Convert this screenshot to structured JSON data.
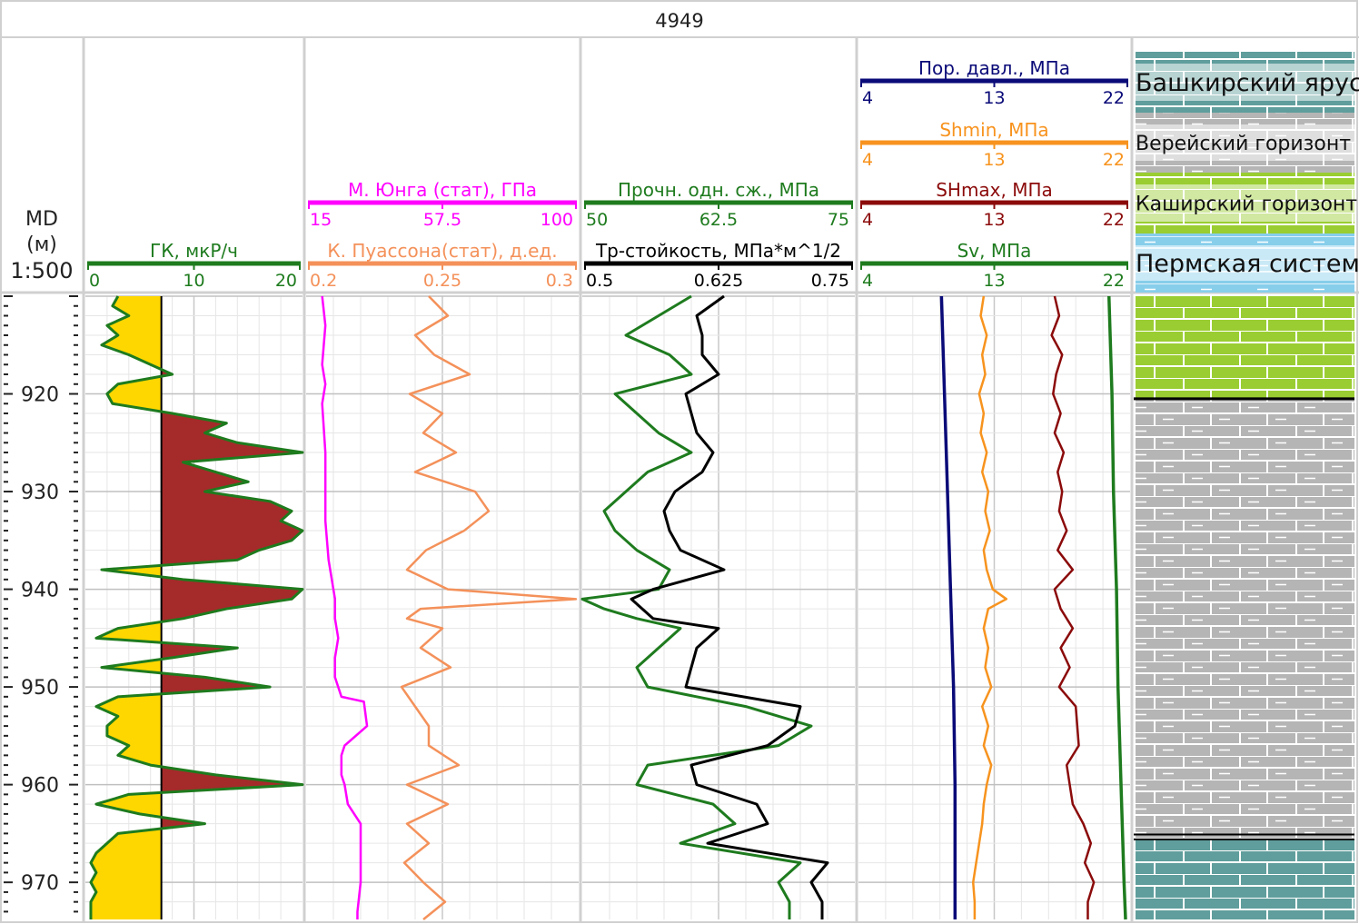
{
  "well": {
    "name": "4949"
  },
  "depth_track": {
    "label_line1": "MD",
    "label_line2": "(м)",
    "scale": "1:500",
    "range": [
      910.0,
      973.8
    ],
    "tick_labels": [
      "920",
      "930",
      "940",
      "950",
      "960",
      "970"
    ]
  },
  "headers": [
    {
      "id": "gk",
      "name": "ГК, мкР/ч",
      "color": "#1e7b1e",
      "scale": [
        "0",
        "10",
        "20"
      ]
    },
    {
      "id": "young",
      "name": "М. Юнга (стат), ГПа",
      "color": "#ff00ff",
      "scale": [
        "15",
        "57.5",
        "100"
      ]
    },
    {
      "id": "poisson",
      "name": "К. Пуассона(стат), д.ед.",
      "color": "#f4915a",
      "scale": [
        "0.2",
        "0.25",
        "0.3"
      ]
    },
    {
      "id": "ucs",
      "name": "Прочн. одн. сж., МПа",
      "color": "#1e7b1e",
      "scale": [
        "50",
        "62.5",
        "75"
      ]
    },
    {
      "id": "kic",
      "name": "Тр-стойкость, МПа*м^1/2",
      "color": "#000000",
      "scale": [
        "0.5",
        "0.625",
        "0.75"
      ]
    },
    {
      "id": "pp",
      "name": "Пор. давл., МПа",
      "color": "#0a0a78",
      "scale": [
        "4",
        "13",
        "22"
      ]
    },
    {
      "id": "shmin",
      "name": "Shmin, МПа",
      "color": "#f7931e",
      "scale": [
        "4",
        "13",
        "22"
      ]
    },
    {
      "id": "shmax",
      "name": "SHmax, МПа",
      "color": "#8b0a0a",
      "scale": [
        "4",
        "13",
        "22"
      ]
    },
    {
      "id": "sv",
      "name": "Sv, МПа",
      "color": "#1e7b1e",
      "scale": [
        "4",
        "13",
        "22"
      ]
    }
  ],
  "strat_legend": [
    {
      "name": "Башкирский ярус",
      "fill": "#5f9e9c"
    },
    {
      "name": "Верейский горизонт",
      "fill": "#b5b5b5"
    },
    {
      "name": "Каширский горизонт",
      "fill": "#9acd32"
    },
    {
      "name": "Пермская система",
      "fill": "#87ceeb"
    }
  ],
  "chart_data": {
    "type": "line",
    "depth_unit": "м",
    "gk_cutoff": 7,
    "series": [
      {
        "id": "gk",
        "name": "ГК, мкР/ч",
        "color": "#1e7b1e",
        "xlim": [
          0,
          20
        ],
        "depth": [
          910,
          911,
          912,
          913,
          914,
          915,
          916,
          917,
          918,
          919,
          920,
          921,
          922,
          923,
          924,
          925,
          926,
          927,
          928,
          929,
          930,
          931,
          932,
          933,
          934,
          935,
          936,
          937,
          938,
          939,
          940,
          941,
          942,
          943,
          944,
          945,
          946,
          947,
          948,
          949,
          950,
          951,
          952,
          953,
          954,
          955,
          956,
          957,
          958,
          959,
          960,
          961,
          962,
          963,
          964,
          965,
          966,
          967,
          968,
          969,
          970,
          971,
          972,
          973,
          973.8
        ],
        "values": [
          3,
          2.5,
          4,
          2,
          3,
          1.5,
          4,
          6,
          8,
          3,
          2,
          2.5,
          8,
          13,
          11,
          14,
          20,
          9,
          12,
          15,
          11,
          17,
          19,
          18,
          20,
          19,
          16,
          14,
          1.5,
          9,
          20,
          19,
          13,
          9,
          3,
          1,
          14,
          8,
          1.5,
          11,
          17,
          3,
          1,
          3,
          2,
          2,
          4,
          3,
          6,
          12,
          20,
          4,
          1,
          5,
          11,
          3,
          2,
          1,
          0.5,
          1,
          0.5,
          1,
          0.5,
          0.5,
          0.5
        ]
      },
      {
        "id": "young",
        "name": "М. Юнга (стат), ГПа",
        "color": "#ff00ff",
        "xlim": [
          15,
          100
        ],
        "depth": [
          910,
          913,
          917,
          919,
          921,
          926,
          930,
          933,
          937,
          941,
          943,
          945,
          947,
          949,
          951,
          951.5,
          954,
          956,
          957,
          959,
          960,
          962,
          964,
          966,
          970,
          973,
          973.8
        ],
        "values": [
          20,
          21,
          20,
          21,
          20,
          21,
          21,
          21,
          22,
          24,
          24,
          25,
          24,
          24,
          26,
          33,
          34,
          27,
          26,
          26,
          27,
          28,
          32,
          32,
          32,
          31,
          31
        ]
      },
      {
        "id": "poisson",
        "name": "К. Пуассона(стат), д.ед.",
        "color": "#f4915a",
        "xlim": [
          0.2,
          0.3
        ],
        "depth": [
          910,
          912,
          914,
          916,
          918,
          920,
          922,
          924,
          926,
          928,
          930,
          932,
          934,
          936,
          938,
          940,
          941,
          942,
          943,
          944,
          946,
          948,
          950,
          952,
          954,
          956,
          958,
          960,
          962,
          964,
          966,
          968,
          970,
          972,
          973.8
        ],
        "values": [
          0.245,
          0.252,
          0.24,
          0.247,
          0.26,
          0.238,
          0.25,
          0.243,
          0.255,
          0.24,
          0.262,
          0.267,
          0.258,
          0.244,
          0.237,
          0.252,
          0.299,
          0.242,
          0.237,
          0.25,
          0.242,
          0.253,
          0.235,
          0.24,
          0.245,
          0.245,
          0.256,
          0.237,
          0.252,
          0.237,
          0.245,
          0.236,
          0.243,
          0.251,
          0.243
        ]
      },
      {
        "id": "ucs",
        "name": "Прочн. одн. сж., МПа",
        "color": "#1e7b1e",
        "xlim": [
          50,
          75
        ],
        "depth": [
          910,
          912,
          914,
          916,
          918,
          920,
          922,
          924,
          926,
          928,
          930,
          932,
          934,
          936,
          938,
          940,
          941,
          942,
          943,
          944,
          946,
          948,
          950,
          952,
          954,
          956,
          958,
          960,
          962,
          964,
          966,
          968,
          970,
          972,
          973.8
        ],
        "values": [
          60,
          57,
          54,
          58,
          60,
          53,
          55,
          57,
          60,
          56,
          54,
          52,
          53,
          55,
          58,
          57,
          50,
          52,
          55,
          59,
          57,
          55,
          56,
          65,
          71,
          68,
          56,
          55,
          62,
          64,
          59,
          70,
          68,
          69,
          69
        ]
      },
      {
        "id": "kic",
        "name": "Тр-стойкость, МПа*м^1/2",
        "color": "#000000",
        "xlim": [
          0.5,
          0.75
        ],
        "depth": [
          910,
          912,
          914,
          916,
          918,
          920,
          922,
          924,
          926,
          928,
          930,
          932,
          934,
          936,
          938,
          940,
          941,
          942,
          943,
          944,
          946,
          948,
          950,
          952,
          954,
          956,
          958,
          960,
          962,
          964,
          966,
          968,
          970,
          972,
          973.8
        ],
        "values": [
          0.63,
          0.605,
          0.61,
          0.61,
          0.625,
          0.595,
          0.6,
          0.605,
          0.62,
          0.61,
          0.585,
          0.575,
          0.58,
          0.59,
          0.63,
          0.565,
          0.545,
          0.555,
          0.565,
          0.625,
          0.605,
          0.6,
          0.595,
          0.7,
          0.695,
          0.67,
          0.6,
          0.605,
          0.66,
          0.67,
          0.615,
          0.725,
          0.71,
          0.72,
          0.72
        ]
      },
      {
        "id": "pp",
        "name": "Пор. давл., МПа",
        "color": "#0a0a78",
        "xlim": [
          4,
          22
        ],
        "depth": [
          910,
          920,
          930,
          940,
          950,
          960,
          970,
          973.8
        ],
        "values": [
          9.5,
          9.7,
          9.9,
          10.1,
          10.3,
          10.4,
          10.4,
          10.4
        ]
      },
      {
        "id": "shmin",
        "name": "Shmin, МПа",
        "color": "#f7931e",
        "xlim": [
          4,
          22
        ],
        "depth": [
          910,
          912,
          914,
          916,
          918,
          920,
          922,
          924,
          926,
          928,
          930,
          932,
          934,
          936,
          938,
          940,
          941,
          942,
          944,
          946,
          948,
          950,
          952,
          954,
          956,
          958,
          960,
          962,
          964,
          966,
          968,
          970,
          972,
          973.8
        ],
        "values": [
          12.3,
          12.1,
          12.5,
          12.2,
          12.4,
          12.0,
          12.3,
          12.1,
          12.5,
          12.2,
          12.6,
          12.4,
          12.7,
          12.3,
          12.5,
          12.9,
          13.8,
          12.6,
          12.3,
          12.6,
          12.4,
          12.8,
          12.2,
          12.6,
          12.3,
          12.8,
          12.5,
          12.3,
          12.2,
          12.0,
          11.8,
          11.6,
          11.7,
          11.7
        ]
      },
      {
        "id": "shmax",
        "name": "SHmax, МПа",
        "color": "#8b0a0a",
        "xlim": [
          4,
          22
        ],
        "depth": [
          910,
          912,
          914,
          916,
          918,
          920,
          922,
          924,
          926,
          928,
          930,
          932,
          934,
          936,
          938,
          940,
          942,
          944,
          946,
          948,
          950,
          952,
          954,
          956,
          958,
          960,
          962,
          964,
          966,
          968,
          970,
          972,
          973.8
        ],
        "values": [
          17.0,
          17.3,
          16.8,
          17.5,
          17.1,
          16.9,
          17.4,
          17.0,
          17.6,
          17.2,
          17.5,
          17.3,
          17.8,
          17.2,
          18.2,
          17.0,
          17.4,
          18.2,
          17.4,
          18.0,
          17.3,
          18.4,
          18.5,
          18.6,
          17.8,
          18.0,
          18.2,
          18.9,
          19.4,
          19.0,
          19.6,
          19.2,
          19.2
        ]
      },
      {
        "id": "sv",
        "name": "Sv, МПа",
        "color": "#1e7b1e",
        "xlim": [
          4,
          22
        ],
        "depth": [
          910,
          920,
          930,
          940,
          950,
          960,
          970,
          973.8
        ],
        "values": [
          20.6,
          20.8,
          20.9,
          21.1,
          21.2,
          21.4,
          21.6,
          21.7
        ]
      }
    ],
    "lithology": [
      {
        "from": 910,
        "to": 920.5,
        "fill": "#9acd32"
      },
      {
        "from": 920.5,
        "to": 965.5,
        "fill": "#b5b5b5"
      },
      {
        "from": 965.5,
        "to": 973.8,
        "fill": "#5f9e9c"
      }
    ]
  }
}
